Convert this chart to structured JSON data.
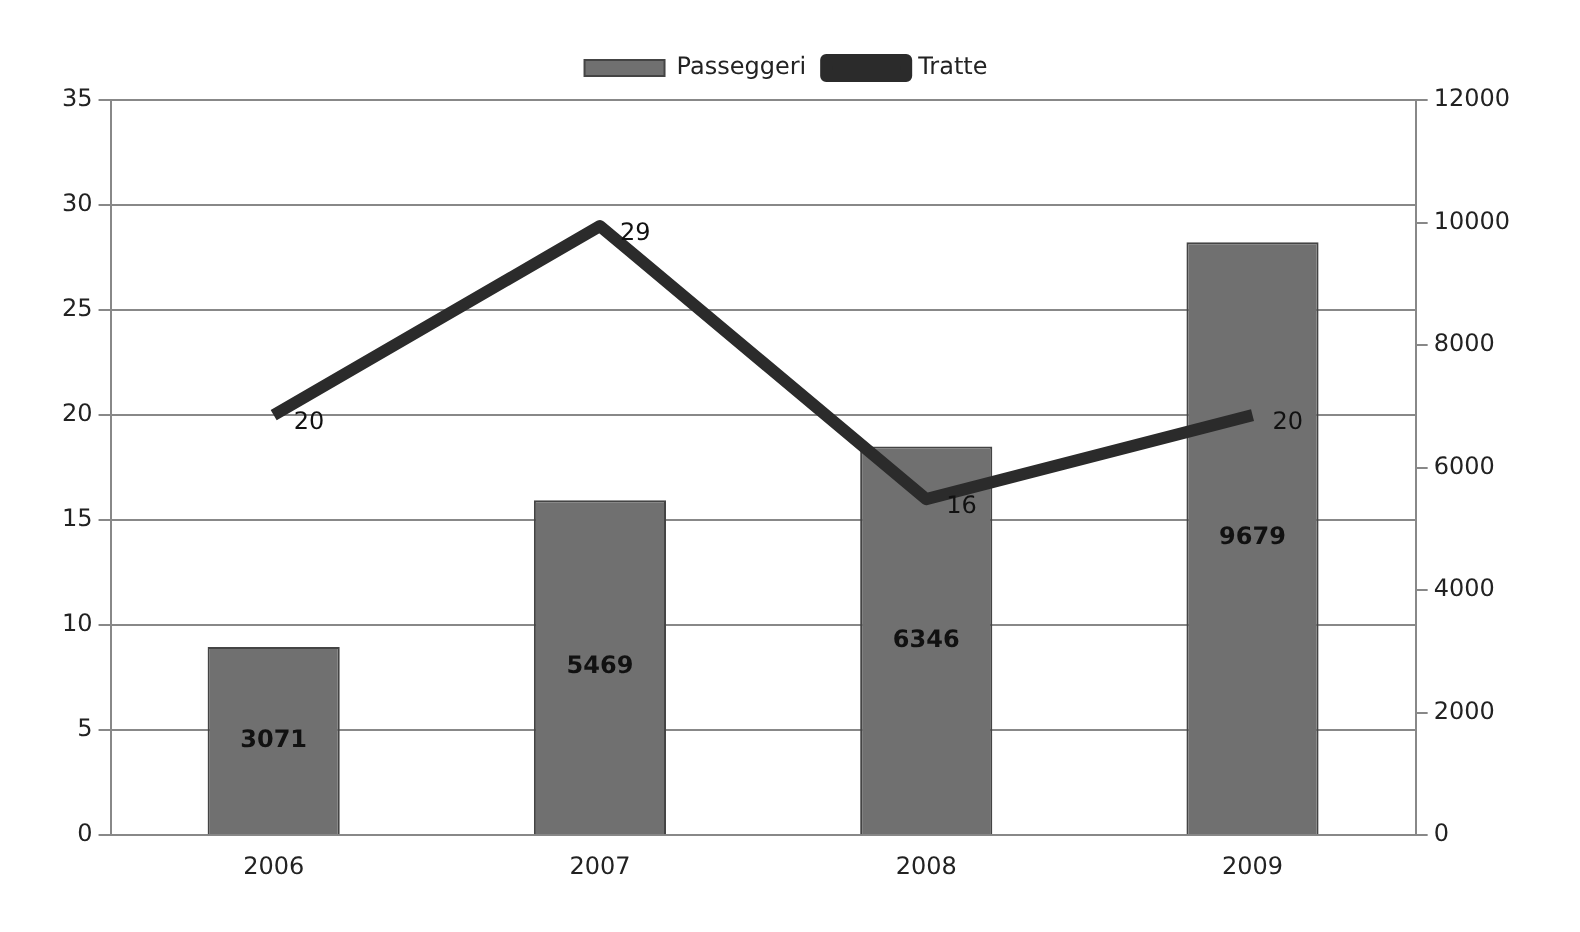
{
  "chart_data": {
    "type": "bar",
    "categories": [
      "2006",
      "2007",
      "2008",
      "2009"
    ],
    "series": [
      {
        "name": "Passeggeri",
        "axis": "y2",
        "color": "#707070",
        "values": [
          3071,
          5469,
          6346,
          9679
        ]
      },
      {
        "name": "Tratte",
        "type": "line",
        "color": "#2b2b2b",
        "values": [
          20,
          29,
          16,
          20
        ]
      }
    ],
    "ylim": [
      0,
      35
    ],
    "yticks": [
      0,
      5,
      10,
      15,
      20,
      25,
      30,
      35
    ],
    "y2lim": [
      0,
      12000
    ],
    "y2ticks": [
      0,
      2000,
      4000,
      6000,
      8000,
      10000,
      12000
    ],
    "grid": "y",
    "legend": "top",
    "marker": "none",
    "data_labels": true
  }
}
